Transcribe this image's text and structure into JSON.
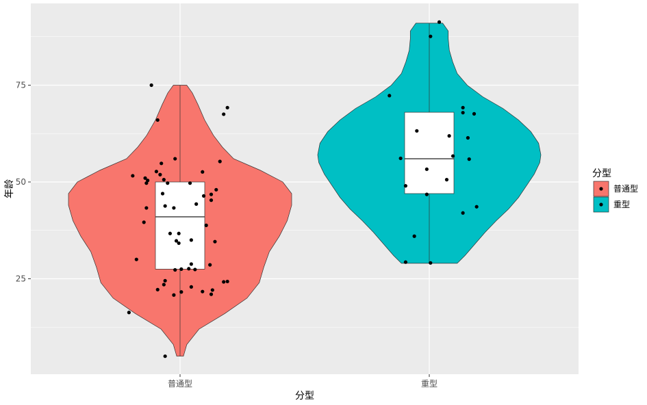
{
  "chart_data": {
    "type": "violin",
    "xlabel": "分型",
    "ylabel": "年龄",
    "categories": [
      "普通型",
      "重型"
    ],
    "y_ticks": [
      25,
      50,
      75
    ],
    "ylim": [
      2,
      96
    ],
    "grid": true,
    "legend": {
      "title": "分型",
      "placement": "right",
      "entries": [
        {
          "label": "普通型",
          "color": "#F8766D"
        },
        {
          "label": "重型",
          "color": "#00BFC4"
        }
      ]
    },
    "panel_background": "#EBEBEB",
    "series": [
      {
        "category": "普通型",
        "color": "#F8766D",
        "range": [
          5,
          75
        ],
        "box": {
          "q1": 27.5,
          "median": 41,
          "q3": 50,
          "whisker_low": 5,
          "whisker_high": 75
        },
        "density": [
          [
            5,
            0.03
          ],
          [
            8,
            0.06
          ],
          [
            12,
            0.17
          ],
          [
            16,
            0.4
          ],
          [
            20,
            0.6
          ],
          [
            24,
            0.71
          ],
          [
            28,
            0.75
          ],
          [
            32,
            0.8
          ],
          [
            36,
            0.89
          ],
          [
            40,
            0.96
          ],
          [
            44,
            1.0
          ],
          [
            47,
            1.0
          ],
          [
            50,
            0.92
          ],
          [
            53,
            0.72
          ],
          [
            56,
            0.48
          ],
          [
            59,
            0.38
          ],
          [
            62,
            0.3
          ],
          [
            66,
            0.22
          ],
          [
            70,
            0.16
          ],
          [
            73,
            0.11
          ],
          [
            75,
            0.06
          ]
        ],
        "points": [
          [
            -0.115,
            75
          ],
          [
            -0.09,
            66
          ],
          [
            0.19,
            69.2
          ],
          [
            0.175,
            67.5
          ],
          [
            0.16,
            55.3
          ],
          [
            -0.02,
            56
          ],
          [
            -0.19,
            51.6
          ],
          [
            -0.14,
            51
          ],
          [
            -0.13,
            50.4
          ],
          [
            -0.135,
            49.7
          ],
          [
            -0.095,
            52.7
          ],
          [
            -0.08,
            51.9
          ],
          [
            -0.065,
            50.6
          ],
          [
            0.09,
            52.6
          ],
          [
            -0.075,
            54.8
          ],
          [
            -0.05,
            49.7
          ],
          [
            0.04,
            49.7
          ],
          [
            0.145,
            48
          ],
          [
            0.125,
            46.8
          ],
          [
            0.095,
            46.4
          ],
          [
            0.125,
            45.3
          ],
          [
            -0.07,
            47
          ],
          [
            -0.06,
            43.8
          ],
          [
            -0.025,
            43.3
          ],
          [
            -0.135,
            43.3
          ],
          [
            0.065,
            44.3
          ],
          [
            -0.145,
            39.6
          ],
          [
            0.105,
            38.8
          ],
          [
            -0.04,
            36.7
          ],
          [
            -0.005,
            36.7
          ],
          [
            -0.015,
            34.8
          ],
          [
            0.045,
            35
          ],
          [
            0.14,
            34.6
          ],
          [
            -0.005,
            34.2
          ],
          [
            -0.175,
            30
          ],
          [
            0.045,
            28.8
          ],
          [
            0.035,
            27.6
          ],
          [
            0.005,
            27.5
          ],
          [
            -0.02,
            27.3
          ],
          [
            0.06,
            27.4
          ],
          [
            0.12,
            28.6
          ],
          [
            0.175,
            24.2
          ],
          [
            -0.06,
            24.5
          ],
          [
            -0.065,
            23.5
          ],
          [
            0.19,
            24.3
          ],
          [
            0.045,
            22.9
          ],
          [
            0.09,
            21.7
          ],
          [
            0.13,
            22.1
          ],
          [
            -0.09,
            22.2
          ],
          [
            0.005,
            21.6
          ],
          [
            -0.025,
            20.8
          ],
          [
            0.125,
            21
          ],
          [
            -0.205,
            16.3
          ],
          [
            -0.06,
            5
          ]
        ]
      },
      {
        "category": "重型",
        "color": "#00BFC4",
        "range": [
          29,
          91
        ],
        "box": {
          "q1": 47,
          "median": 56,
          "q3": 68,
          "whisker_low": 29,
          "whisker_high": 91
        },
        "density": [
          [
            29,
            0.25
          ],
          [
            31,
            0.32
          ],
          [
            34,
            0.41
          ],
          [
            37,
            0.5
          ],
          [
            40,
            0.6
          ],
          [
            43,
            0.71
          ],
          [
            46,
            0.8
          ],
          [
            49,
            0.87
          ],
          [
            52,
            0.94
          ],
          [
            55,
            0.99
          ],
          [
            57,
            1.0
          ],
          [
            60,
            0.98
          ],
          [
            63,
            0.91
          ],
          [
            66,
            0.8
          ],
          [
            69,
            0.66
          ],
          [
            72,
            0.48
          ],
          [
            75,
            0.34
          ],
          [
            78,
            0.25
          ],
          [
            81,
            0.21
          ],
          [
            84,
            0.18
          ],
          [
            87,
            0.17
          ],
          [
            89,
            0.17
          ],
          [
            91,
            0.12
          ]
        ],
        "points": [
          [
            0.04,
            91.3
          ],
          [
            0.005,
            87.6
          ],
          [
            -0.16,
            72.3
          ],
          [
            0.135,
            69.2
          ],
          [
            0.135,
            67.9
          ],
          [
            0.18,
            67.6
          ],
          [
            -0.05,
            63.2
          ],
          [
            0.08,
            61.9
          ],
          [
            0.155,
            61.4
          ],
          [
            0.095,
            56.7
          ],
          [
            -0.115,
            56.1
          ],
          [
            0.16,
            55.9
          ],
          [
            -0.01,
            53.3
          ],
          [
            0.07,
            50.6
          ],
          [
            -0.095,
            49
          ],
          [
            -0.01,
            46.8
          ],
          [
            0.19,
            43.6
          ],
          [
            0.135,
            42
          ],
          [
            -0.06,
            36
          ],
          [
            -0.095,
            29.3
          ],
          [
            0.005,
            29.1
          ]
        ]
      }
    ]
  }
}
